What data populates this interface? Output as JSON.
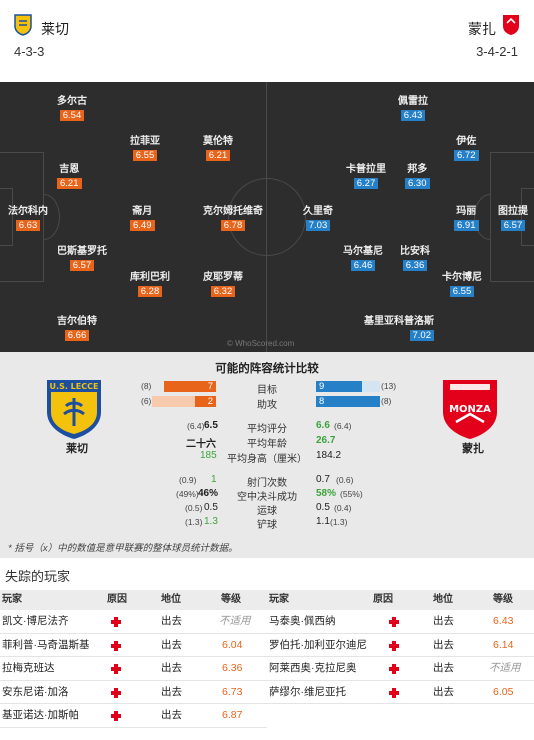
{
  "home": {
    "name": "莱切",
    "formation": "4-3-3",
    "color": "#e8641b"
  },
  "away": {
    "name": "蒙扎",
    "formation": "3-4-2-1",
    "color": "#2680c8"
  },
  "home_players": [
    {
      "name": "多尔古",
      "rating": "6.54"
    },
    {
      "name": "拉菲亚",
      "rating": "6.55"
    },
    {
      "name": "莫伦特",
      "rating": "6.21"
    },
    {
      "name": "吉恩",
      "rating": "6.21"
    },
    {
      "name": "法尔科内",
      "rating": "6.63"
    },
    {
      "name": "斋月",
      "rating": "6.49"
    },
    {
      "name": "克尔姆托维奇",
      "rating": "6.78"
    },
    {
      "name": "巴斯基罗托",
      "rating": "6.57"
    },
    {
      "name": "库利巴利",
      "rating": "6.28"
    },
    {
      "name": "皮耶罗蒂",
      "rating": "6.32"
    },
    {
      "name": "吉尔伯特",
      "rating": "6.66"
    }
  ],
  "away_players": [
    {
      "name": "佩雷拉",
      "rating": "6.43"
    },
    {
      "name": "伊佐",
      "rating": "6.72"
    },
    {
      "name": "卡普拉里",
      "rating": "6.27"
    },
    {
      "name": "邦多",
      "rating": "6.30"
    },
    {
      "name": "久里奇",
      "rating": "7.03"
    },
    {
      "name": "玛丽",
      "rating": "6.91"
    },
    {
      "name": "图拉提",
      "rating": "6.57"
    },
    {
      "name": "马尔基尼",
      "rating": "6.46"
    },
    {
      "name": "比安科",
      "rating": "6.36"
    },
    {
      "name": "卡尔博尼",
      "rating": "6.55"
    },
    {
      "name": "基里亚科普洛斯",
      "rating": "7.02"
    }
  ],
  "watermark": "© WhoScored.com",
  "comparison": {
    "title": "可能的阵容统计比较",
    "home_crest_text": "U.S. LECCE",
    "away_crest_text": "MONZA",
    "bars": [
      {
        "label": "目标",
        "home": "7",
        "home_paren": "(8)",
        "away": "9",
        "away_paren": "(13)",
        "home_frac": 0.82,
        "away_frac": 0.72
      },
      {
        "label": "助攻",
        "home": "2",
        "home_paren": "(6)",
        "away": "8",
        "away_paren": "(8)",
        "home_frac": 0.33,
        "away_frac": 1.0
      }
    ],
    "rows1": [
      {
        "label": "平均评分",
        "home": "6.5",
        "home_paren": "(6.4)",
        "away": "6.6",
        "away_paren": "(6.4)",
        "home_style": "b",
        "away_style": "g"
      },
      {
        "label": "平均年龄",
        "home": "二十六",
        "home_paren": "",
        "away": "26.7",
        "away_paren": "",
        "home_style": "b",
        "away_style": "g"
      },
      {
        "label": "平均身高（厘米）",
        "home": "185",
        "home_paren": "",
        "away": "184.2",
        "away_paren": "",
        "home_style": "g",
        "away_style": "b"
      }
    ],
    "rows2": [
      {
        "label": "射门次数",
        "home": "1",
        "home_paren": "(0.9)",
        "away": "0.7",
        "away_paren": "(0.6)",
        "home_style": "g",
        "away_style": "b"
      },
      {
        "label": "空中决斗成功",
        "home": "46%",
        "home_paren": "(49%)",
        "away": "58%",
        "away_paren": "(55%)",
        "home_style": "b",
        "away_style": "g"
      },
      {
        "label": "运球",
        "home": "0.5",
        "home_paren": "(0.5)",
        "away": "0.5",
        "away_paren": "(0.4)",
        "home_style": "b",
        "away_style": "b"
      },
      {
        "label": "铲球",
        "home": "1.3",
        "home_paren": "(1.3)",
        "away": "1.1",
        "away_paren": "(1.3)",
        "home_style": "g",
        "away_style": "b"
      }
    ],
    "footnote": "* 括号（x）中的数值是意甲联赛的整体球员统计数据。"
  },
  "missing": {
    "title": "失踪的玩家",
    "headers": {
      "player": "玩家",
      "reason": "原因",
      "status": "地位",
      "rating": "等级"
    },
    "home": [
      {
        "player": "凯文·博尼法齐",
        "status": "出去",
        "rating": "不适用"
      },
      {
        "player": "菲利普·马奇温斯基",
        "status": "出去",
        "rating": "6.04"
      },
      {
        "player": "拉梅克班达",
        "status": "出去",
        "rating": "6.36"
      },
      {
        "player": "安东尼诺·加洛",
        "status": "出去",
        "rating": "6.73"
      },
      {
        "player": "基亚诺达·加斯帕",
        "status": "出去",
        "rating": "6.87"
      }
    ],
    "away": [
      {
        "player": "马泰奥·佩西纳",
        "status": "出去",
        "rating": "6.43"
      },
      {
        "player": "罗伯托·加利亚尔迪尼",
        "status": "出去",
        "rating": "6.14"
      },
      {
        "player": "阿莱西奥·克拉尼奥",
        "status": "出去",
        "rating": "不适用"
      },
      {
        "player": "萨缪尔·维尼亚托",
        "status": "出去",
        "rating": "6.05"
      }
    ]
  }
}
